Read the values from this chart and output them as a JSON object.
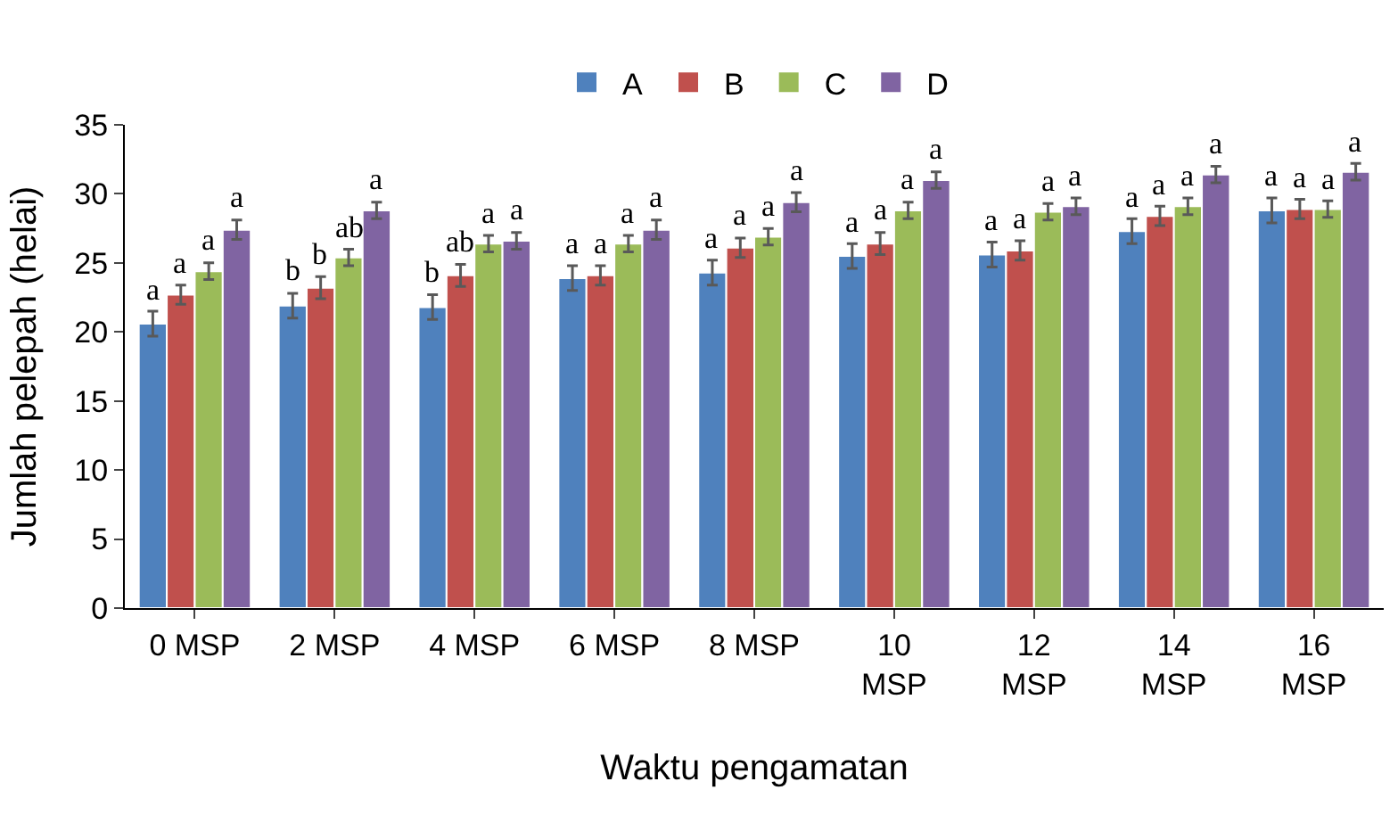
{
  "chart_data": {
    "type": "bar",
    "xlabel": "Waktu pengamatan",
    "ylabel": "Jumlah pelepah (helai)",
    "categories": [
      "0 MSP",
      "2 MSP",
      "4 MSP",
      "6 MSP",
      "8 MSP",
      "10 MSP",
      "12 MSP",
      "14 MSP",
      "16 MSP"
    ],
    "ylim": [
      0,
      35
    ],
    "yticks": [
      0,
      5,
      10,
      15,
      20,
      25,
      30,
      35
    ],
    "grid": false,
    "legend": "top",
    "series": [
      {
        "name": "A",
        "color": "#4f81bd",
        "values": [
          20.6,
          21.9,
          21.8,
          23.9,
          24.3,
          25.5,
          25.6,
          27.3,
          28.8
        ],
        "errors": [
          0.9,
          0.9,
          0.9,
          0.9,
          0.9,
          0.9,
          0.9,
          0.9,
          0.9
        ],
        "value_labels": [
          "a",
          "b",
          "b",
          "a",
          "a",
          "a",
          "a",
          "a",
          "a"
        ]
      },
      {
        "name": "B",
        "color": "#c0504d",
        "values": [
          22.7,
          23.2,
          24.1,
          24.1,
          26.1,
          26.4,
          25.9,
          28.4,
          28.9
        ],
        "errors": [
          0.7,
          0.8,
          0.8,
          0.7,
          0.7,
          0.8,
          0.7,
          0.7,
          0.7
        ],
        "value_labels": [
          "a",
          "b",
          "ab",
          "a",
          "a",
          "a",
          "a",
          "a",
          "a"
        ]
      },
      {
        "name": "C",
        "color": "#9bbb59",
        "values": [
          24.4,
          25.4,
          26.4,
          26.4,
          26.9,
          28.8,
          28.7,
          29.1,
          28.9
        ],
        "errors": [
          0.6,
          0.6,
          0.6,
          0.6,
          0.6,
          0.6,
          0.6,
          0.6,
          0.6
        ],
        "value_labels": [
          "a",
          "ab",
          "a",
          "a",
          "a",
          "a",
          "a",
          "a",
          "a"
        ]
      },
      {
        "name": "D",
        "color": "#8064a2",
        "values": [
          27.4,
          28.8,
          26.6,
          27.4,
          29.4,
          31.0,
          29.1,
          31.4,
          31.6
        ],
        "errors": [
          0.7,
          0.6,
          0.6,
          0.7,
          0.7,
          0.6,
          0.6,
          0.6,
          0.6
        ],
        "value_labels": [
          "a",
          "a",
          "a",
          "a",
          "a",
          "a",
          "a",
          "a",
          "a"
        ]
      }
    ]
  }
}
